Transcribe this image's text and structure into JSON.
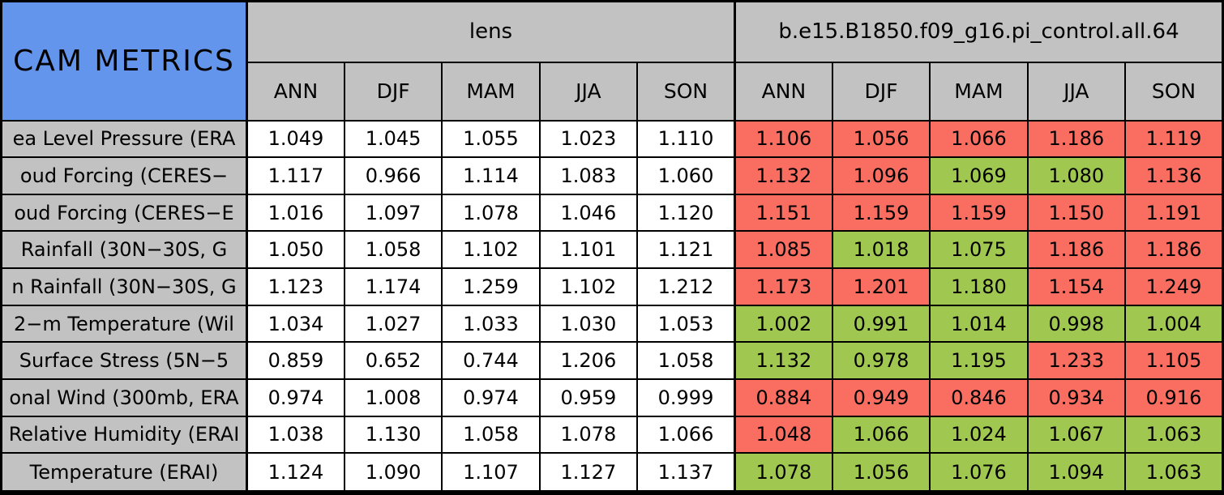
{
  "colors": {
    "title_bg": "#6495ed",
    "header_bg": "#c2c2c2",
    "label_bg": "#c2c2c2",
    "plain_cell_bg": "#ffffff",
    "bad_cell_bg": "#fa6e62",
    "good_cell_bg": "#a0c850",
    "border": "#000000"
  },
  "chart_data": {
    "type": "table",
    "title": "CAM METRICS",
    "groups": [
      {
        "label": "lens"
      },
      {
        "label": "b.e15.B1850.f09_g16.pi_control.all.64"
      }
    ],
    "seasons": [
      "ANN",
      "DJF",
      "MAM",
      "JJA",
      "SON"
    ],
    "cell_color_legend": {
      "good": "green",
      "bad": "red"
    },
    "rows": [
      {
        "label": "ea Level Pressure (ERA",
        "lens": [
          "1.049",
          "1.045",
          "1.055",
          "1.023",
          "1.110"
        ],
        "control": [
          {
            "v": "1.106",
            "c": "bad"
          },
          {
            "v": "1.056",
            "c": "bad"
          },
          {
            "v": "1.066",
            "c": "bad"
          },
          {
            "v": "1.186",
            "c": "bad"
          },
          {
            "v": "1.119",
            "c": "bad"
          }
        ]
      },
      {
        "label": "oud Forcing (CERES−",
        "lens": [
          "1.117",
          "0.966",
          "1.114",
          "1.083",
          "1.060"
        ],
        "control": [
          {
            "v": "1.132",
            "c": "bad"
          },
          {
            "v": "1.096",
            "c": "bad"
          },
          {
            "v": "1.069",
            "c": "good"
          },
          {
            "v": "1.080",
            "c": "good"
          },
          {
            "v": "1.136",
            "c": "bad"
          }
        ]
      },
      {
        "label": "oud Forcing (CERES−E",
        "lens": [
          "1.016",
          "1.097",
          "1.078",
          "1.046",
          "1.120"
        ],
        "control": [
          {
            "v": "1.151",
            "c": "bad"
          },
          {
            "v": "1.159",
            "c": "bad"
          },
          {
            "v": "1.159",
            "c": "bad"
          },
          {
            "v": "1.150",
            "c": "bad"
          },
          {
            "v": "1.191",
            "c": "bad"
          }
        ]
      },
      {
        "label": "Rainfall (30N−30S, G",
        "lens": [
          "1.050",
          "1.058",
          "1.102",
          "1.101",
          "1.121"
        ],
        "control": [
          {
            "v": "1.085",
            "c": "bad"
          },
          {
            "v": "1.018",
            "c": "good"
          },
          {
            "v": "1.075",
            "c": "good"
          },
          {
            "v": "1.186",
            "c": "bad"
          },
          {
            "v": "1.186",
            "c": "bad"
          }
        ]
      },
      {
        "label": "n Rainfall (30N−30S, G",
        "lens": [
          "1.123",
          "1.174",
          "1.259",
          "1.102",
          "1.212"
        ],
        "control": [
          {
            "v": "1.173",
            "c": "bad"
          },
          {
            "v": "1.201",
            "c": "bad"
          },
          {
            "v": "1.180",
            "c": "good"
          },
          {
            "v": "1.154",
            "c": "bad"
          },
          {
            "v": "1.249",
            "c": "bad"
          }
        ]
      },
      {
        "label": "2−m Temperature (Wil",
        "lens": [
          "1.034",
          "1.027",
          "1.033",
          "1.030",
          "1.053"
        ],
        "control": [
          {
            "v": "1.002",
            "c": "good"
          },
          {
            "v": "0.991",
            "c": "good"
          },
          {
            "v": "1.014",
            "c": "good"
          },
          {
            "v": "0.998",
            "c": "good"
          },
          {
            "v": "1.004",
            "c": "good"
          }
        ]
      },
      {
        "label": "Surface Stress (5N−5",
        "lens": [
          "0.859",
          "0.652",
          "0.744",
          "1.206",
          "1.058"
        ],
        "control": [
          {
            "v": "1.132",
            "c": "good"
          },
          {
            "v": "0.978",
            "c": "good"
          },
          {
            "v": "1.195",
            "c": "good"
          },
          {
            "v": "1.233",
            "c": "bad"
          },
          {
            "v": "1.105",
            "c": "bad"
          }
        ]
      },
      {
        "label": "onal Wind (300mb, ERA",
        "lens": [
          "0.974",
          "1.008",
          "0.974",
          "0.959",
          "0.999"
        ],
        "control": [
          {
            "v": "0.884",
            "c": "bad"
          },
          {
            "v": "0.949",
            "c": "bad"
          },
          {
            "v": "0.846",
            "c": "bad"
          },
          {
            "v": "0.934",
            "c": "bad"
          },
          {
            "v": "0.916",
            "c": "bad"
          }
        ]
      },
      {
        "label": "Relative Humidity (ERAI",
        "lens": [
          "1.038",
          "1.130",
          "1.058",
          "1.078",
          "1.066"
        ],
        "control": [
          {
            "v": "1.048",
            "c": "bad"
          },
          {
            "v": "1.066",
            "c": "good"
          },
          {
            "v": "1.024",
            "c": "good"
          },
          {
            "v": "1.067",
            "c": "good"
          },
          {
            "v": "1.063",
            "c": "good"
          }
        ]
      },
      {
        "label": "Temperature (ERAI)",
        "lens": [
          "1.124",
          "1.090",
          "1.107",
          "1.127",
          "1.137"
        ],
        "control": [
          {
            "v": "1.078",
            "c": "good"
          },
          {
            "v": "1.056",
            "c": "good"
          },
          {
            "v": "1.076",
            "c": "good"
          },
          {
            "v": "1.094",
            "c": "good"
          },
          {
            "v": "1.063",
            "c": "good"
          }
        ]
      }
    ]
  }
}
